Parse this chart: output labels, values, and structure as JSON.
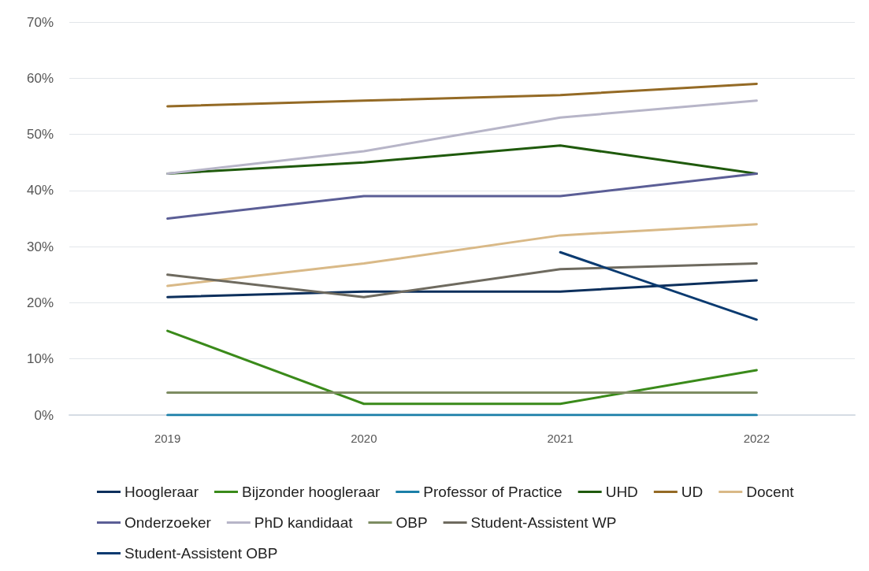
{
  "chart_data": {
    "type": "line",
    "categories": [
      "2019",
      "2020",
      "2021",
      "2022"
    ],
    "ylim": [
      0,
      70
    ],
    "yticks": [
      {
        "value": 0,
        "label": "0%"
      },
      {
        "value": 10,
        "label": "10%"
      },
      {
        "value": 20,
        "label": "20%"
      },
      {
        "value": 30,
        "label": "30%"
      },
      {
        "value": 40,
        "label": "40%"
      },
      {
        "value": 50,
        "label": "50%"
      },
      {
        "value": 60,
        "label": "60%"
      },
      {
        "value": 70,
        "label": "70%"
      }
    ],
    "grid": "y",
    "legend": "bottom",
    "marker": "none",
    "line_style": "solid",
    "series": [
      {
        "name": "Hoogleraar",
        "color": "#0c2f5c",
        "values": [
          21,
          22,
          22,
          24
        ]
      },
      {
        "name": "Bijzonder hoogleraar",
        "color": "#3a8a1a",
        "values": [
          15,
          2,
          2,
          8
        ]
      },
      {
        "name": "Professor of Practice",
        "color": "#1a7fa8",
        "values": [
          0,
          0,
          0,
          0
        ]
      },
      {
        "name": "UHD",
        "color": "#1f5a0c",
        "values": [
          43,
          45,
          48,
          43
        ]
      },
      {
        "name": "UD",
        "color": "#946a25",
        "values": [
          55,
          56,
          57,
          59
        ]
      },
      {
        "name": "Docent",
        "color": "#d9b987",
        "values": [
          23,
          27,
          32,
          34
        ]
      },
      {
        "name": "Onderzoeker",
        "color": "#5b5e96",
        "values": [
          35,
          39,
          39,
          43
        ]
      },
      {
        "name": "PhD kandidaat",
        "color": "#b7b5c8",
        "values": [
          43,
          47,
          53,
          56
        ]
      },
      {
        "name": "OBP",
        "color": "#7d8c62",
        "values": [
          4,
          4,
          4,
          4
        ]
      },
      {
        "name": "Student-Assistent WP",
        "color": "#6e6a5f",
        "values": [
          25,
          21,
          26,
          27
        ]
      },
      {
        "name": "Student-Assistent OBP",
        "color": "#0a3a70",
        "values": [
          null,
          null,
          29,
          17
        ]
      }
    ]
  }
}
